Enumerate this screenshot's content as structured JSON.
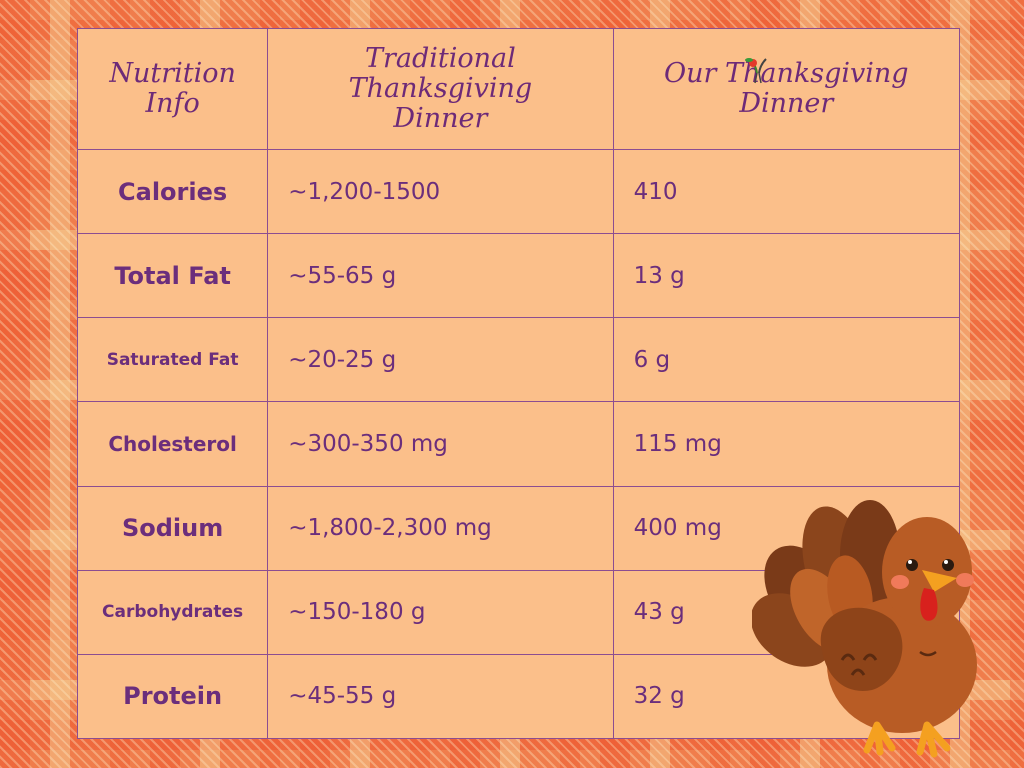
{
  "table": {
    "headers": [
      "Nutrition Info",
      "Traditional Thanksgiving Dinner",
      "Our Thanksgiving Dinner"
    ],
    "rows": [
      {
        "nutrient": "Calories",
        "traditional": "~1,200-1500",
        "ours": "410"
      },
      {
        "nutrient": "Total Fat",
        "traditional": "~55-65 g",
        "ours": "13 g"
      },
      {
        "nutrient": "Saturated Fat",
        "traditional": "~20-25 g",
        "ours": "6 g"
      },
      {
        "nutrient": "Cholesterol",
        "traditional": "~300-350 mg",
        "ours": "115 mg"
      },
      {
        "nutrient": "Sodium",
        "traditional": "~1,800-2,300 mg",
        "ours": "400 mg"
      },
      {
        "nutrient": "Carbohydrates",
        "traditional": "~150-180 g",
        "ours": "43 g"
      },
      {
        "nutrient": "Protein",
        "traditional": "~45-55 g",
        "ours": "32 g"
      }
    ]
  },
  "colors": {
    "text": "#6b2e7c",
    "table_bg": "#fbbf8a",
    "border": "#8b4d91",
    "background": "#f07d4c"
  },
  "icons": [
    "veggie-logo-icon",
    "turkey-illustration"
  ]
}
